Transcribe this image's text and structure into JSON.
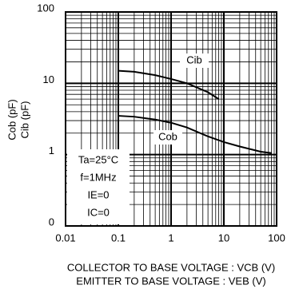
{
  "chart_data": {
    "type": "line",
    "y_label": [
      "Cob (pF)",
      "Cib (pF)"
    ],
    "x_label": [
      "COLLECTOR TO BASE VOLTAGE : VCB (V)",
      "EMITTER TO BASE VOLTAGE : VEB (V)"
    ],
    "x_scale": "log",
    "y_scale": "log",
    "grid": true,
    "minor_grid": true,
    "xlim": [
      0.01,
      100
    ],
    "xticks": [
      0.01,
      0.1,
      1,
      10,
      100
    ],
    "ylim": [
      0.1,
      100
    ],
    "yticks": [
      {
        "value": 0.1,
        "label": "0"
      },
      1,
      10,
      100
    ],
    "series": [
      {
        "name": "Cib",
        "color": "#000000",
        "x": [
          0.1,
          0.2,
          0.5,
          1,
          2,
          5,
          8
        ],
        "values": [
          15,
          14.5,
          13,
          11.5,
          10,
          7.5,
          6
        ]
      },
      {
        "name": "Cob",
        "color": "#000000",
        "x": [
          0.1,
          0.2,
          0.5,
          1,
          2,
          5,
          10,
          20,
          50,
          80
        ],
        "values": [
          3.5,
          3.4,
          3.1,
          2.8,
          2.4,
          1.8,
          1.5,
          1.3,
          1.1,
          1.05
        ]
      }
    ],
    "annotation": [
      "Ta=25°C",
      "f=1MHz",
      "IE=0",
      "IC=0"
    ]
  }
}
